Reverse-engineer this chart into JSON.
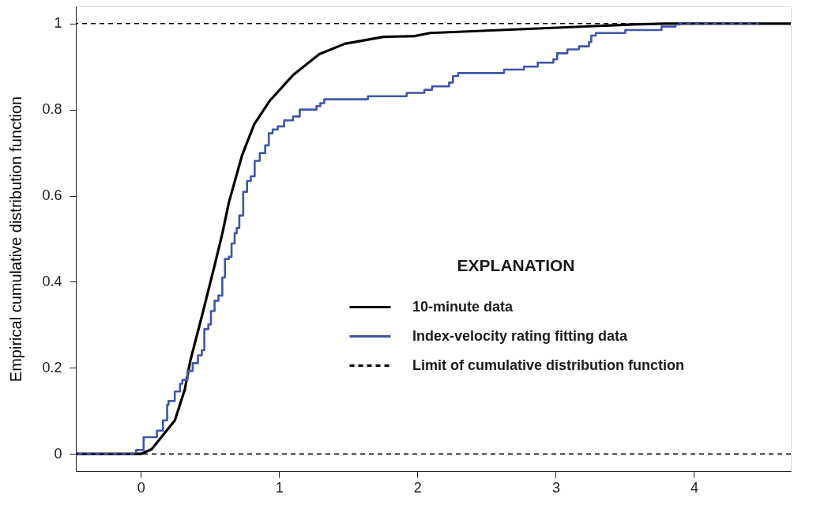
{
  "chart_data": {
    "type": "line",
    "ylabel": "Empirical cumulative distribution function",
    "legend_title": "EXPLANATION",
    "legend": "right",
    "grid": false,
    "marker": "none",
    "xlim": [
      -0.47,
      4.7
    ],
    "xticks": [
      0,
      1,
      2,
      3,
      4
    ],
    "ylim": [
      -0.04,
      1.04
    ],
    "yticks": [
      0,
      0.2,
      0.4,
      0.6,
      0.8,
      1
    ],
    "series": [
      {
        "name": "10-minute data",
        "type": "line",
        "color": "#000000",
        "x": [
          -0.47,
          0,
          0.078,
          0.246,
          0.318,
          0.358,
          0.45,
          0.535,
          0.59,
          0.637,
          0.732,
          0.82,
          0.933,
          1.1,
          1.29,
          1.475,
          1.754,
          1.98,
          2.09,
          2.91,
          3.56,
          3.8,
          4.7
        ],
        "values": [
          0,
          0,
          0.011,
          0.078,
          0.15,
          0.217,
          0.331,
          0.44,
          0.513,
          0.585,
          0.694,
          0.766,
          0.821,
          0.88,
          0.929,
          0.953,
          0.969,
          0.971,
          0.978,
          0.989,
          0.998,
          1,
          1
        ]
      },
      {
        "name": "Index-velocity rating fitting data",
        "type": "step",
        "color": "#3f56a6",
        "x": [
          -0.47,
          -0.034,
          0.02,
          0.116,
          0.16,
          0.19,
          0.2,
          0.245,
          0.283,
          0.3,
          0.337,
          0.375,
          0.413,
          0.441,
          0.459,
          0.488,
          0.507,
          0.533,
          0.561,
          0.589,
          0.608,
          0.637,
          0.656,
          0.678,
          0.693,
          0.712,
          0.74,
          0.768,
          0.795,
          0.823,
          0.86,
          0.899,
          0.925,
          0.953,
          0.99,
          1.036,
          1.1,
          1.149,
          1.27,
          1.298,
          1.326,
          1.642,
          1.922,
          2.05,
          2.106,
          2.229,
          2.257,
          2.294,
          2.626,
          2.77,
          2.87,
          2.983,
          3.01,
          3.084,
          3.168,
          3.24,
          3.257,
          3.29,
          3.503,
          3.765,
          3.866,
          3.9,
          4.47
        ],
        "values": [
          0,
          0.009,
          0.039,
          0.054,
          0.078,
          0.114,
          0.123,
          0.145,
          0.163,
          0.172,
          0.193,
          0.211,
          0.229,
          0.241,
          0.29,
          0.301,
          0.332,
          0.356,
          0.368,
          0.41,
          0.453,
          0.458,
          0.489,
          0.513,
          0.525,
          0.554,
          0.609,
          0.634,
          0.645,
          0.681,
          0.699,
          0.717,
          0.745,
          0.754,
          0.761,
          0.775,
          0.784,
          0.8,
          0.808,
          0.815,
          0.824,
          0.831,
          0.839,
          0.846,
          0.854,
          0.863,
          0.878,
          0.885,
          0.893,
          0.9,
          0.909,
          0.917,
          0.931,
          0.94,
          0.947,
          0.957,
          0.972,
          0.978,
          0.985,
          0.993,
          0.998,
          1,
          1
        ]
      }
    ],
    "ref_lines": [
      {
        "axis": "y",
        "value": 0,
        "label": "Limit of cumulative distribution function",
        "color": "#000000",
        "line_style": "dashed"
      },
      {
        "axis": "y",
        "value": 1,
        "color": "#000000",
        "line_style": "dashed"
      }
    ]
  }
}
